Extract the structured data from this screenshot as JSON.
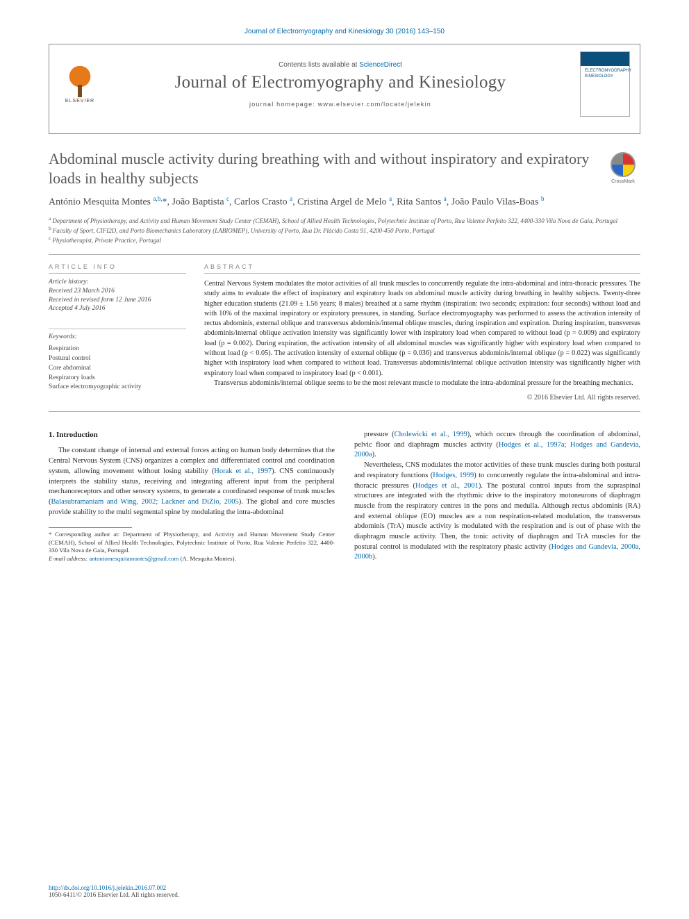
{
  "citation": "Journal of Electromyography and Kinesiology 30 (2016) 143–150",
  "header": {
    "contents_prefix": "Contents lists available at ",
    "contents_link": "ScienceDirect",
    "journal_name": "Journal of Electromyography and Kinesiology",
    "homepage_prefix": "journal homepage: ",
    "homepage_url": "www.elsevier.com/locate/jelekin",
    "publisher_logo_text": "ELSEVIER",
    "cover_colors": {
      "band": "#0b4f7a",
      "bg": "#ffffff"
    }
  },
  "crossmark_label": "CrossMark",
  "title": "Abdominal muscle activity during breathing with and without inspiratory and expiratory loads in healthy subjects",
  "authors_html": "António Mesquita Montes <sup>a,b,</sup><span class='star'>*</span>, João Baptista <sup>c</sup>, Carlos Crasto <sup>a</sup>, Cristina Argel de Melo <sup>a</sup>, Rita Santos <sup>a</sup>, João Paulo Vilas-Boas <sup>b</sup>",
  "affiliations": {
    "a": "Department of Physiotherapy, and Activity and Human Movement Study Center (CEMAH), School of Allied Health Technologies, Polytechnic Institute of Porto, Rua Valente Perfeito 322, 4400-330 Vila Nova de Gaia, Portugal",
    "b": "Faculty of Sport, CIFI2D, and Porto Biomechanics Laboratory (LABIOMEP), University of Porto, Rua Dr. Plácido Costa 91, 4200-450 Porto, Portugal",
    "c": "Physiotherapist, Private Practice, Portugal"
  },
  "article_info_head": "ARTICLE INFO",
  "abstract_head": "ABSTRACT",
  "history_head": "Article history:",
  "history": {
    "received": "Received 23 March 2016",
    "revised": "Received in revised form 12 June 2016",
    "accepted": "Accepted 4 July 2016"
  },
  "keywords_head": "Keywords:",
  "keywords": [
    "Respiration",
    "Postural control",
    "Core abdominal",
    "Respiratory loads",
    "Surface electromyographic activity"
  ],
  "abstract_paragraphs": [
    "Central Nervous System modulates the motor activities of all trunk muscles to concurrently regulate the intra-abdominal and intra-thoracic pressures. The study aims to evaluate the effect of inspiratory and expiratory loads on abdominal muscle activity during breathing in healthy subjects. Twenty-three higher education students (21.09 ± 1.56 years; 8 males) breathed at a same rhythm (inspiration: two seconds; expiration: four seconds) without load and with 10% of the maximal inspiratory or expiratory pressures, in standing. Surface electromyography was performed to assess the activation intensity of rectus abdominis, external oblique and transversus abdominis/internal oblique muscles, during inspiration and expiration. During inspiration, transversus abdominis/internal oblique activation intensity was significantly lower with inspiratory load when compared to without load (p = 0.009) and expiratory load (p = 0.002). During expiration, the activation intensity of all abdominal muscles was significantly higher with expiratory load when compared to without load (p < 0.05). The activation intensity of external oblique (p = 0.036) and transversus abdominis/internal oblique (p = 0.022) was significantly higher with inspiratory load when compared to without load. Transversus abdominis/internal oblique activation intensity was significantly higher with expiratory load when compared to inspiratory load (p < 0.001).",
    "Transversus abdominis/internal oblique seems to be the most relevant muscle to modulate the intra-abdominal pressure for the breathing mechanics."
  ],
  "copyright": "© 2016 Elsevier Ltd. All rights reserved.",
  "section1_head": "1. Introduction",
  "body_p1": "The constant change of internal and external forces acting on human body determines that the Central Nervous System (CNS) organizes a complex and differentiated control and coordination system, allowing movement without losing stability (",
  "ref1": "Horak et al., 1997",
  "body_p1b": "). CNS continuously interprets the stability status, receiving and integrating afferent input from the peripheral mechanoreceptors and other sensory systems, to generate a coordinated response of trunk muscles (",
  "ref2": "Balasubramaniam and Wing, 2002; Lackner and DiZio, 2005",
  "body_p1c": "). The global and core muscles provide stability to the multi segmental spine by modulating the intra-abdominal",
  "body_p2a": "pressure (",
  "ref3": "Cholewicki et al., 1999",
  "body_p2b": "), which occurs through the coordination of abdominal, pelvic floor and diaphragm muscles activity (",
  "ref4": "Hodges et al., 1997a; Hodges and Gandevia, 2000a",
  "body_p2c": ").",
  "body_p3a": "Nevertheless, CNS modulates the motor activities of these trunk muscles during both postural and respiratory functions (",
  "ref5": "Hodges, 1999",
  "body_p3b": ") to concurrently regulate the intra-abdominal and intra-thoracic pressures (",
  "ref6": "Hodges et al., 2001",
  "body_p3c": "). The postural control inputs from the supraspinal structures are integrated with the rhythmic drive to the inspiratory motoneurons of diaphragm muscle from the respiratory centres in the pons and medulla. Although rectus abdominis (RA) and external oblique (EO) muscles are a non respiration-related modulation, the transversus abdominis (TrA) muscle activity is modulated with the respiration and is out of phase with the diaphragm muscle activity. Then, the tonic activity of diaphragm and TrA muscles for the postural control is modulated with the respiratory phasic activity (",
  "ref7": "Hodges and Gandevia, 2000a, 2000b",
  "body_p3d": ").",
  "footnote_corr_label": "* Corresponding author at: ",
  "footnote_corr": "Department of Physiotherapy, and Activity and Human Movement Study Center (CEMAH), School of Allied Health Technologies, Polytechnic Institute of Porto, Rua Valente Perfeito 322, 4400-330 Vila Nova de Gaia, Portugal.",
  "footnote_email_label": "E-mail address: ",
  "footnote_email": "antoniomesquitamontes@gmail.com",
  "footnote_email_paren": " (A. Mesquita Montes).",
  "doi": "http://dx.doi.org/10.1016/j.jelekin.2016.07.002",
  "issn_line": "1050-6411/© 2016 Elsevier Ltd. All rights reserved.",
  "colors": {
    "link": "#0066a8",
    "text": "#2a2a2a",
    "muted": "#555555",
    "rule": "#aaaaaa",
    "elsevier_orange": "#e67a1a"
  },
  "typography": {
    "title_pt": 22,
    "journal_name_pt": 25,
    "authors_pt": 14,
    "body_pt": 10.5,
    "abstract_pt": 10.2,
    "affil_pt": 9,
    "footnote_pt": 8.8
  }
}
